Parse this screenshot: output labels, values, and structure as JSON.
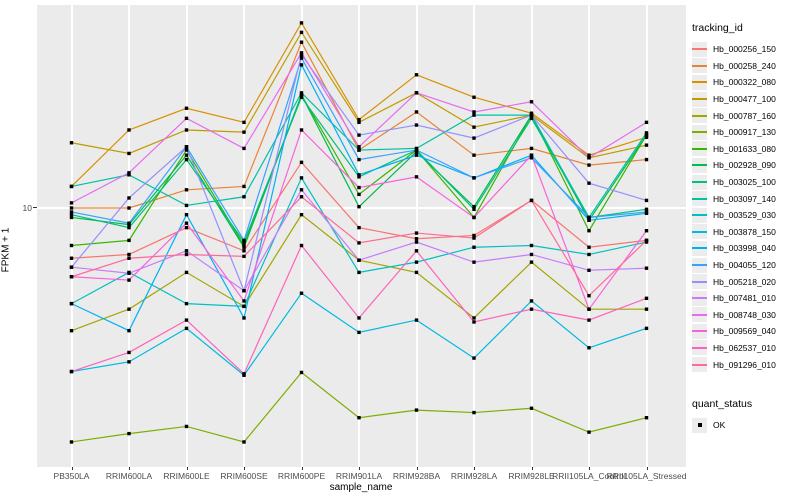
{
  "figure": {
    "y_axis_title": "FPKM + 1",
    "x_axis_title": "sample_name",
    "y_tick_label": "10",
    "panel_bg": "#EBEBEB",
    "gridline_color": "#FFFFFF",
    "tick_label_color": "#4D4D4D",
    "marker_color": "#000000"
  },
  "legend": {
    "tracking_title": "tracking_id",
    "quant_title": "quant_status",
    "quant_item_label": "OK"
  },
  "chart_data": {
    "type": "line",
    "title": "",
    "xlabel": "sample_name",
    "ylabel": "FPKM + 1",
    "yscale": "log10",
    "y_ticks": [
      10
    ],
    "ylim": [
      1.4,
      47
    ],
    "grid": "major",
    "legend_position": "right",
    "marker": "black-square",
    "categories": [
      "PB350LA",
      "RRIM600LA",
      "RRIM600LE",
      "RRIM600SE",
      "RRIM600PE",
      "RRIM901LA",
      "RRIM928BA",
      "RRIM928LA",
      "RRIM928LE",
      "RRII105LA_Control",
      "RRII105LA_Stressed"
    ],
    "series": [
      {
        "name": "Hb_000256_150",
        "color": "#F8766D",
        "values": [
          6.8,
          7.0,
          8.6,
          7.2,
          14.2,
          8.6,
          7.9,
          8.1,
          10.6,
          7.4,
          7.8
        ]
      },
      {
        "name": "Hb_000258_240",
        "color": "#EA8331",
        "values": [
          10.0,
          10.0,
          11.5,
          11.8,
          35.7,
          15.6,
          20.9,
          15.0,
          15.8,
          13.9,
          14.5
        ]
      },
      {
        "name": "Hb_000322_080",
        "color": "#D89000",
        "values": [
          11.8,
          18.2,
          21.5,
          19.3,
          41.4,
          19.7,
          27.8,
          23.4,
          20.7,
          15.0,
          17.2
        ]
      },
      {
        "name": "Hb_000477_100",
        "color": "#C09B00",
        "values": [
          16.5,
          15.2,
          18.2,
          17.9,
          38.5,
          19.3,
          24.2,
          18.6,
          20.4,
          14.7,
          16.2
        ]
      },
      {
        "name": "Hb_000787_160",
        "color": "#A3A500",
        "values": [
          3.9,
          4.6,
          6.1,
          4.7,
          9.5,
          6.7,
          6.1,
          4.3,
          6.6,
          4.6,
          4.6
        ]
      },
      {
        "name": "Hb_000917_130",
        "color": "#7CAE00",
        "values": [
          1.66,
          1.77,
          1.87,
          1.66,
          2.83,
          2.0,
          2.12,
          2.08,
          2.15,
          1.79,
          2.0
        ]
      },
      {
        "name": "Hb_001633_080",
        "color": "#39B600",
        "values": [
          7.5,
          7.8,
          15.6,
          7.5,
          23.8,
          11.1,
          15.6,
          9.3,
          20.4,
          8.4,
          17.5
        ]
      },
      {
        "name": "Hb_002928_090",
        "color": "#00BB4E",
        "values": [
          9.3,
          8.8,
          15.0,
          7.4,
          23.8,
          10.1,
          15.4,
          10.1,
          20.4,
          9.1,
          17.5
        ]
      },
      {
        "name": "Hb_003025_100",
        "color": "#00BF7D",
        "values": [
          9.5,
          8.6,
          14.5,
          7.7,
          23.4,
          12.7,
          15.6,
          9.9,
          19.9,
          9.3,
          9.9
        ]
      },
      {
        "name": "Hb_003097_140",
        "color": "#00C1A3",
        "values": [
          11.8,
          12.9,
          10.2,
          10.9,
          24.2,
          15.6,
          15.8,
          20.4,
          20.4,
          9.3,
          17.8
        ]
      },
      {
        "name": "Hb_003529_030",
        "color": "#00BFC4",
        "values": [
          4.8,
          6.1,
          4.8,
          4.7,
          12.6,
          6.1,
          6.6,
          7.4,
          7.5,
          7.0,
          7.7
        ]
      },
      {
        "name": "Hb_003878_150",
        "color": "#00BAE0",
        "values": [
          2.85,
          3.07,
          3.97,
          2.77,
          5.2,
          3.85,
          4.23,
          3.16,
          4.9,
          3.42,
          3.97
        ]
      },
      {
        "name": "Hb_003998_040",
        "color": "#00B0F6",
        "values": [
          4.8,
          3.9,
          9.5,
          4.3,
          30.0,
          12.9,
          15.0,
          12.6,
          15.0,
          9.1,
          9.6
        ]
      },
      {
        "name": "Hb_004055_120",
        "color": "#35A2FF",
        "values": [
          9.7,
          8.9,
          16.0,
          7.8,
          31.6,
          14.5,
          15.6,
          12.6,
          14.7,
          9.3,
          9.7
        ]
      },
      {
        "name": "Hb_005218_020",
        "color": "#9590FF",
        "values": [
          6.35,
          10.8,
          16.0,
          5.3,
          32.4,
          17.5,
          18.9,
          17.1,
          20.4,
          12.1,
          10.6
        ]
      },
      {
        "name": "Hb_007481_010",
        "color": "#C77CFF",
        "values": [
          6.35,
          6.06,
          7.2,
          5.3,
          11.5,
          6.7,
          7.7,
          6.6,
          7.0,
          6.2,
          6.3
        ]
      },
      {
        "name": "Hb_008748_030",
        "color": "#E76BF3",
        "values": [
          10.4,
          13.1,
          19.9,
          15.8,
          32.9,
          16.0,
          24.2,
          20.9,
          22.6,
          14.7,
          19.3
        ]
      },
      {
        "name": "Hb_009569_040",
        "color": "#FA62DB",
        "values": [
          5.9,
          5.75,
          8.9,
          4.9,
          18.2,
          11.7,
          12.7,
          9.3,
          15.0,
          4.6,
          8.4
        ]
      },
      {
        "name": "Hb_062537_010",
        "color": "#FF62BC",
        "values": [
          2.85,
          3.3,
          4.23,
          2.8,
          7.5,
          4.3,
          7.2,
          4.17,
          4.6,
          4.23,
          5.0
        ]
      },
      {
        "name": "Hb_091296_010",
        "color": "#FF6A98",
        "values": [
          5.9,
          6.8,
          7.0,
          6.9,
          10.9,
          7.65,
          8.25,
          7.94,
          10.6,
          5.1,
          7.8
        ]
      }
    ]
  }
}
